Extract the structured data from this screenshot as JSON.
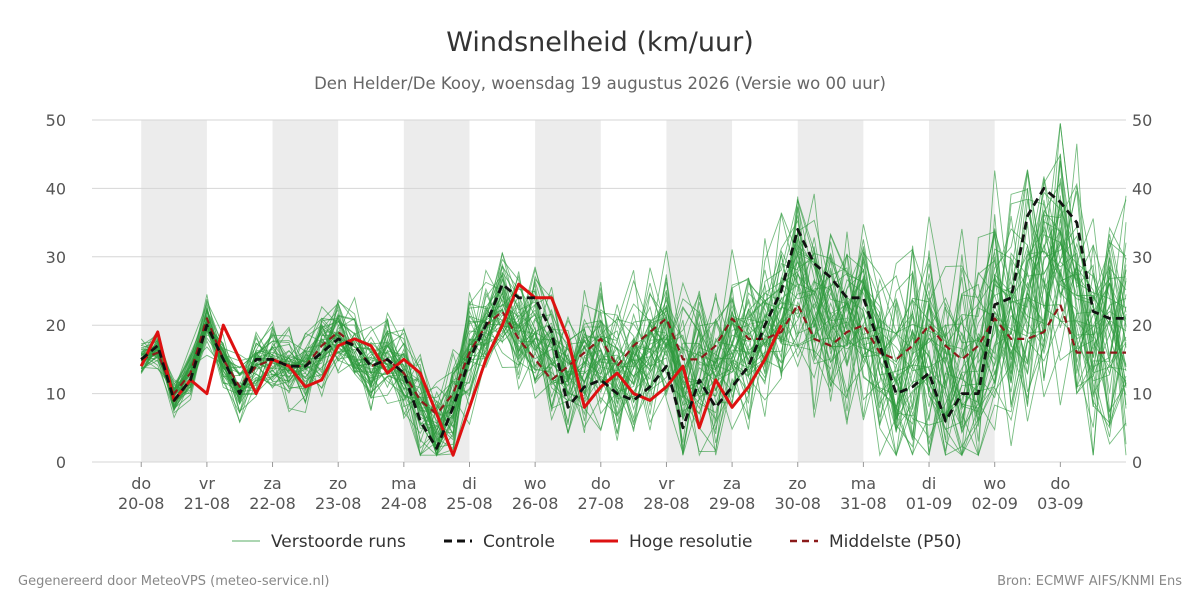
{
  "chart_data": {
    "type": "line",
    "title": "Windsnelheid (km/uur)",
    "subtitle": "Den Helder/De Kooy, woensdag 19 augustus 2026 (Versie wo 00 uur)",
    "ylim": [
      0,
      50
    ],
    "yticks": [
      0,
      10,
      20,
      30,
      40,
      50
    ],
    "x_hours": [
      0,
      6,
      12,
      18,
      24,
      30,
      36,
      42,
      48,
      54,
      60,
      66,
      72,
      78,
      84,
      90,
      96,
      102,
      108,
      114,
      120,
      126,
      132,
      138,
      144,
      150,
      156,
      162,
      168,
      174,
      180,
      186,
      192,
      198,
      204,
      210,
      216,
      222,
      228,
      234,
      240,
      246,
      252,
      258,
      264,
      270,
      276,
      282,
      288,
      294,
      300,
      306,
      312,
      318,
      324,
      330,
      336,
      342,
      348,
      354,
      360
    ],
    "x_ticks": [
      {
        "day": "do",
        "date": "20-08"
      },
      {
        "day": "vr",
        "date": "21-08"
      },
      {
        "day": "za",
        "date": "22-08"
      },
      {
        "day": "zo",
        "date": "23-08"
      },
      {
        "day": "ma",
        "date": "24-08"
      },
      {
        "day": "di",
        "date": "25-08"
      },
      {
        "day": "wo",
        "date": "26-08"
      },
      {
        "day": "do",
        "date": "27-08"
      },
      {
        "day": "vr",
        "date": "28-08"
      },
      {
        "day": "za",
        "date": "29-08"
      },
      {
        "day": "zo",
        "date": "30-08"
      },
      {
        "day": "ma",
        "date": "31-08"
      },
      {
        "day": "di",
        "date": "01-09"
      },
      {
        "day": "wo",
        "date": "02-09"
      },
      {
        "day": "do",
        "date": "03-09"
      }
    ],
    "grid": true,
    "legend_position": "bottom",
    "series": [
      {
        "name": "Controle",
        "color": "#111111",
        "style": "dashed",
        "values": [
          15,
          17,
          9,
          12,
          20,
          15,
          10,
          15,
          15,
          14,
          14,
          16,
          18,
          17,
          14,
          15,
          13,
          6,
          2,
          8,
          15,
          20,
          26,
          24,
          24,
          19,
          8,
          11,
          12,
          10,
          9,
          11,
          14,
          5,
          12,
          8,
          11,
          14,
          20,
          25,
          34,
          29,
          27,
          24,
          24,
          17,
          10,
          11,
          13,
          6,
          10,
          10,
          23,
          24,
          36,
          40,
          38,
          35,
          22,
          21,
          21
        ]
      },
      {
        "name": "Hoge resolutie",
        "color": "#dd1111",
        "style": "solid",
        "values": [
          14,
          19,
          9,
          12,
          10,
          20,
          15,
          10,
          15,
          14,
          11,
          12,
          17,
          18,
          17,
          13,
          15,
          13,
          7,
          1,
          8,
          15,
          20,
          26,
          24,
          24,
          18,
          8,
          11,
          13,
          10,
          9,
          11,
          14,
          5,
          12,
          8,
          11,
          15,
          20
        ]
      },
      {
        "name": "Middelste (P50)",
        "color": "#8b1a1a",
        "style": "dashed",
        "values": [
          15,
          16,
          10,
          13,
          21,
          15,
          11,
          14,
          15,
          14,
          14,
          17,
          19,
          17,
          14,
          15,
          13,
          9,
          7,
          10,
          16,
          20,
          22,
          18,
          15,
          12,
          14,
          16,
          18,
          14,
          17,
          19,
          21,
          15,
          15,
          17,
          21,
          18,
          18,
          19,
          23,
          18,
          17,
          19,
          20,
          16,
          15,
          17,
          20,
          17,
          15,
          17,
          21,
          18,
          18,
          19,
          23,
          16,
          16,
          16,
          16
        ]
      },
      {
        "name": "Verstoorde runs",
        "color": "#2e9a3e",
        "style": "thin",
        "count": 50,
        "values": []
      }
    ]
  },
  "legend": [
    {
      "label": "Verstoorde runs"
    },
    {
      "label": "Controle"
    },
    {
      "label": "Hoge resolutie"
    },
    {
      "label": "Middelste (P50)"
    }
  ],
  "footer": {
    "left": "Gegenereerd door MeteoVPS (meteo-service.nl)",
    "right": "Bron: ECMWF AIFS/KNMI Ens"
  }
}
